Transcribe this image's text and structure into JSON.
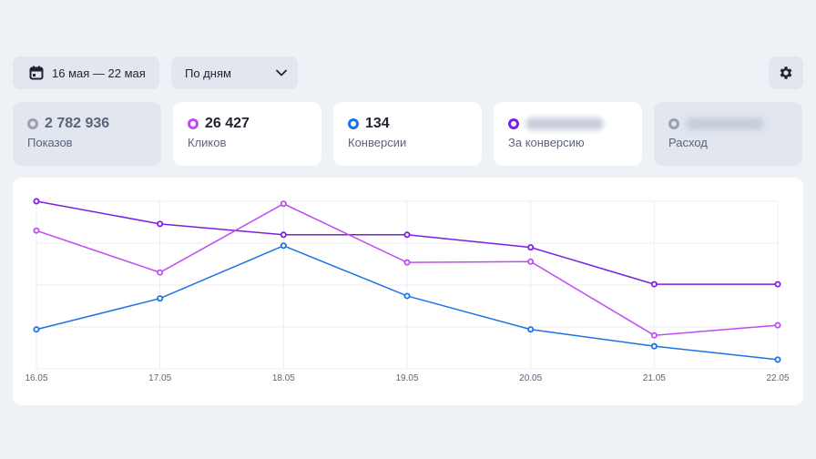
{
  "toolbar": {
    "date_range": "16 мая — 22 мая",
    "period": "По дням"
  },
  "cards": [
    {
      "value": "2 782 936",
      "label": "Показов",
      "ring_color": "#9aa1ad",
      "active": false,
      "blurred": false
    },
    {
      "value": "26 427",
      "label": "Кликов",
      "ring_color": "#c14bf2",
      "active": true,
      "blurred": false
    },
    {
      "value": "134",
      "label": "Конверсии",
      "ring_color": "#1a73e8",
      "active": true,
      "blurred": false
    },
    {
      "value": "",
      "label": "За конверсию",
      "ring_color": "#7b20e0",
      "active": true,
      "blurred": true
    },
    {
      "value": "",
      "label": "Расход",
      "ring_color": "#9aa1ad",
      "active": false,
      "blurred": true
    }
  ],
  "chart_data": {
    "type": "line",
    "categories": [
      "16.05",
      "17.05",
      "18.05",
      "19.05",
      "20.05",
      "21.05",
      "22.05"
    ],
    "ylim": [
      0,
      100
    ],
    "grid": true,
    "series": [
      {
        "color": "#7b20e0",
        "values": [
          100,
          86.5,
          80,
          80,
          72.5,
          50.5,
          50.5
        ]
      },
      {
        "color": "#c14bf2",
        "values": [
          82.5,
          57.5,
          98.5,
          63.5,
          64,
          20,
          26
        ]
      },
      {
        "color": "#1a73e8",
        "values": [
          23.5,
          42,
          73.5,
          43.5,
          23.5,
          13.5,
          5.5
        ]
      }
    ]
  }
}
